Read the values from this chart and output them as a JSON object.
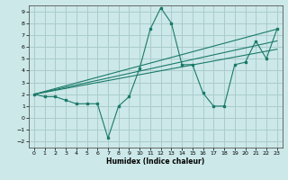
{
  "xlabel": "Humidex (Indice chaleur)",
  "background_color": "#cce8e8",
  "grid_color": "#aacccc",
  "line_color": "#1a7a6a",
  "xlim": [
    -0.5,
    23.5
  ],
  "ylim": [
    -2.5,
    9.5
  ],
  "xticks": [
    0,
    1,
    2,
    3,
    4,
    5,
    6,
    7,
    8,
    9,
    10,
    11,
    12,
    13,
    14,
    15,
    16,
    17,
    18,
    19,
    20,
    21,
    22,
    23
  ],
  "yticks": [
    -2,
    -1,
    0,
    1,
    2,
    3,
    4,
    5,
    6,
    7,
    8,
    9
  ],
  "main_line": {
    "x": [
      0,
      1,
      2,
      3,
      4,
      5,
      6,
      7,
      8,
      9,
      10,
      11,
      12,
      13,
      14,
      15,
      16,
      17,
      18,
      19,
      20,
      21,
      22,
      23
    ],
    "y": [
      2.0,
      1.8,
      1.8,
      1.5,
      1.2,
      1.2,
      1.2,
      -1.7,
      1.0,
      1.8,
      4.2,
      7.5,
      9.3,
      8.0,
      4.5,
      4.5,
      2.1,
      1.0,
      1.0,
      4.5,
      4.7,
      6.5,
      5.0,
      7.5
    ]
  },
  "straight_lines": [
    {
      "x": [
        0,
        23
      ],
      "y": [
        2.0,
        7.5
      ]
    },
    {
      "x": [
        0,
        23
      ],
      "y": [
        2.0,
        6.5
      ]
    },
    {
      "x": [
        0,
        23
      ],
      "y": [
        2.0,
        5.8
      ]
    }
  ]
}
